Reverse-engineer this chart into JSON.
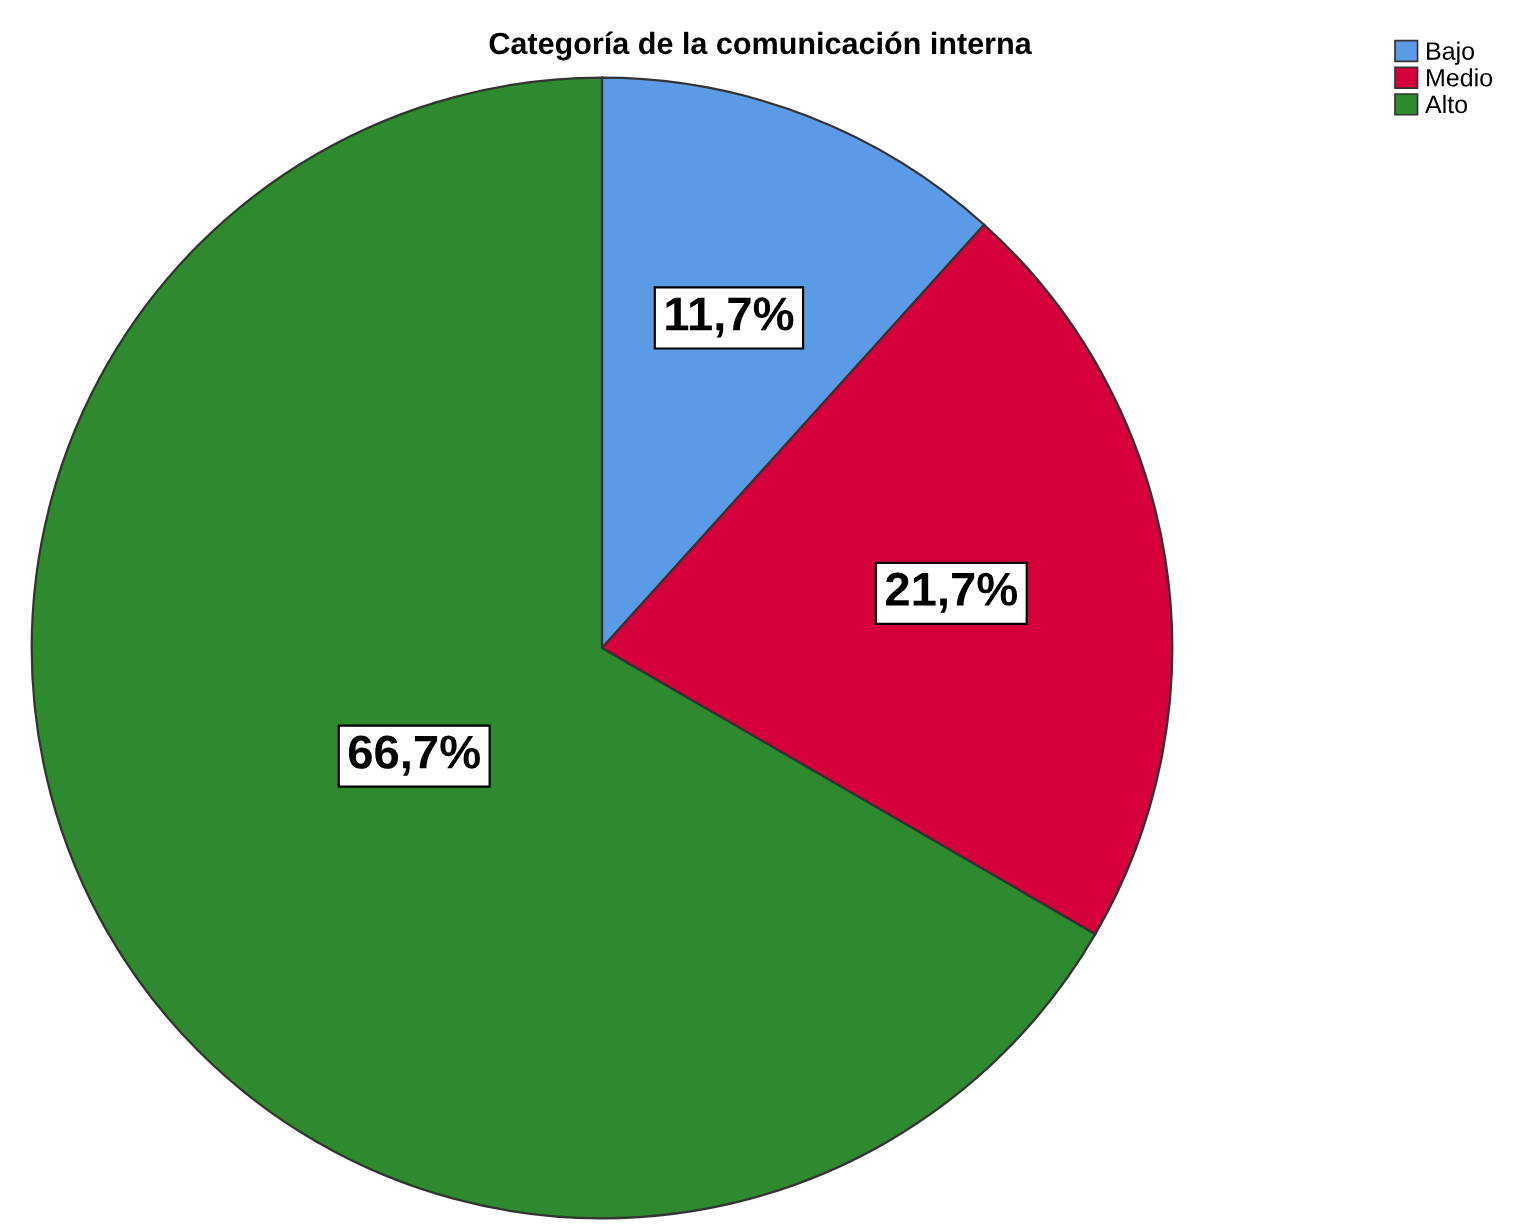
{
  "chart_data": {
    "type": "pie",
    "title": "Categoría de la comunicación interna",
    "categories": [
      "Bajo",
      "Medio",
      "Alto"
    ],
    "values": [
      11.7,
      21.7,
      66.7
    ],
    "value_labels": [
      "11,7%",
      "21,7%",
      "66,7%"
    ],
    "colors": [
      "#5b9be6",
      "#d6003a",
      "#2e8a2e"
    ],
    "legend": "top right"
  }
}
